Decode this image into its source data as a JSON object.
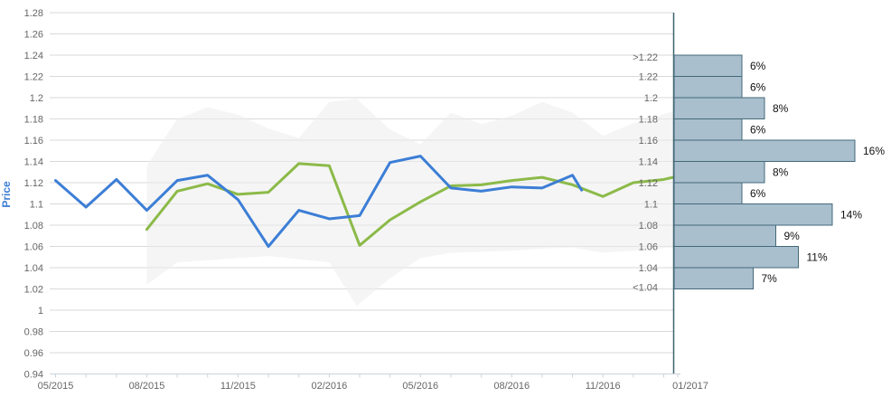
{
  "palette": {
    "actual_line": "#3c7ed6",
    "forecast_line": "#8cba49",
    "band_fill": "#ececec",
    "grid": "#d9d9d9",
    "axis_line": "#c9d4dc",
    "axis_label": "#666666",
    "bar_fill": "#a9bfcd",
    "bar_border": "#44697a",
    "separator_line": "#3b6270",
    "percent_label": "#111111",
    "price_title": "#3c7ed6"
  },
  "chart_data": [
    {
      "type": "line",
      "title": "",
      "xlabel": "",
      "ylabel": "Price",
      "ylim": [
        0.94,
        1.28
      ],
      "ytick_step": 0.02,
      "grid": true,
      "legend": false,
      "yticks": [
        "1.28",
        "1.26",
        "1.24",
        "1.22",
        "1.2",
        "1.18",
        "1.16",
        "1.14",
        "1.12",
        "1.1",
        "1.08",
        "1.06",
        "1.04",
        "1.02",
        "1",
        "0.98",
        "0.96",
        "0.94"
      ],
      "x_unit": "months since 05/2015",
      "xticks": [
        {
          "n": 0,
          "label": "05/2015"
        },
        {
          "n": 3,
          "label": "08/2015"
        },
        {
          "n": 6,
          "label": "11/2015"
        },
        {
          "n": 9,
          "label": "02/2016"
        },
        {
          "n": 12,
          "label": "05/2016"
        },
        {
          "n": 15,
          "label": "08/2016"
        },
        {
          "n": 18,
          "label": "11/2016"
        }
      ],
      "series": [
        {
          "name": "actual-price",
          "color_key": "actual_line",
          "x": [
            0,
            1,
            2,
            3,
            4,
            5,
            6,
            7,
            8,
            9,
            10,
            11,
            12,
            13,
            14,
            15,
            16,
            17,
            17.3
          ],
          "values": [
            1.122,
            1.097,
            1.123,
            1.094,
            1.122,
            1.127,
            1.104,
            1.06,
            1.094,
            1.086,
            1.089,
            1.139,
            1.145,
            1.115,
            1.112,
            1.116,
            1.115,
            1.127,
            1.113
          ]
        },
        {
          "name": "forecast-price",
          "color_key": "forecast_line",
          "x": [
            3,
            4,
            5,
            6,
            7,
            8,
            9,
            10,
            11,
            12,
            13,
            14,
            15,
            16,
            17,
            18,
            19,
            20,
            20.3
          ],
          "values": [
            1.076,
            1.112,
            1.119,
            1.109,
            1.111,
            1.138,
            1.136,
            1.061,
            1.085,
            1.102,
            1.117,
            1.118,
            1.122,
            1.125,
            1.118,
            1.107,
            1.12,
            1.123,
            1.125
          ]
        }
      ],
      "band": {
        "name": "confidence-band",
        "x": [
          3,
          4,
          5,
          6,
          7,
          8,
          9,
          9.9,
          11,
          12,
          13,
          14,
          15,
          16,
          17,
          18,
          19,
          20.3
        ],
        "upper": [
          1.136,
          1.18,
          1.191,
          1.184,
          1.171,
          1.162,
          1.196,
          1.199,
          1.17,
          1.156,
          1.186,
          1.175,
          1.183,
          1.196,
          1.186,
          1.164,
          1.176,
          1.187
        ],
        "lower": [
          1.024,
          1.045,
          1.047,
          1.049,
          1.051,
          1.048,
          1.045,
          1.004,
          1.03,
          1.049,
          1.054,
          1.055,
          1.056,
          1.058,
          1.059,
          1.054,
          1.056,
          1.059
        ]
      }
    },
    {
      "type": "bar",
      "orientation": "horizontal",
      "title": "",
      "date_label": "01/2017",
      "unit": "%",
      "boundary_labels": [
        ">1.22",
        "1.22",
        "1.2",
        "1.18",
        "1.16",
        "1.14",
        "1.12",
        "1.1",
        "1.08",
        "1.06",
        "1.04",
        "<1.04"
      ],
      "bucket_top_values": [
        1.24,
        1.22,
        1.2,
        1.18,
        1.16,
        1.14,
        1.12,
        1.1,
        1.08,
        1.06,
        1.04
      ],
      "values": [
        6,
        6,
        8,
        6,
        16,
        8,
        6,
        14,
        9,
        11,
        7
      ],
      "value_labels": [
        "6%",
        "6%",
        "8%",
        "6%",
        "16%",
        "8%",
        "6%",
        "14%",
        "9%",
        "11%",
        "7%"
      ]
    }
  ]
}
